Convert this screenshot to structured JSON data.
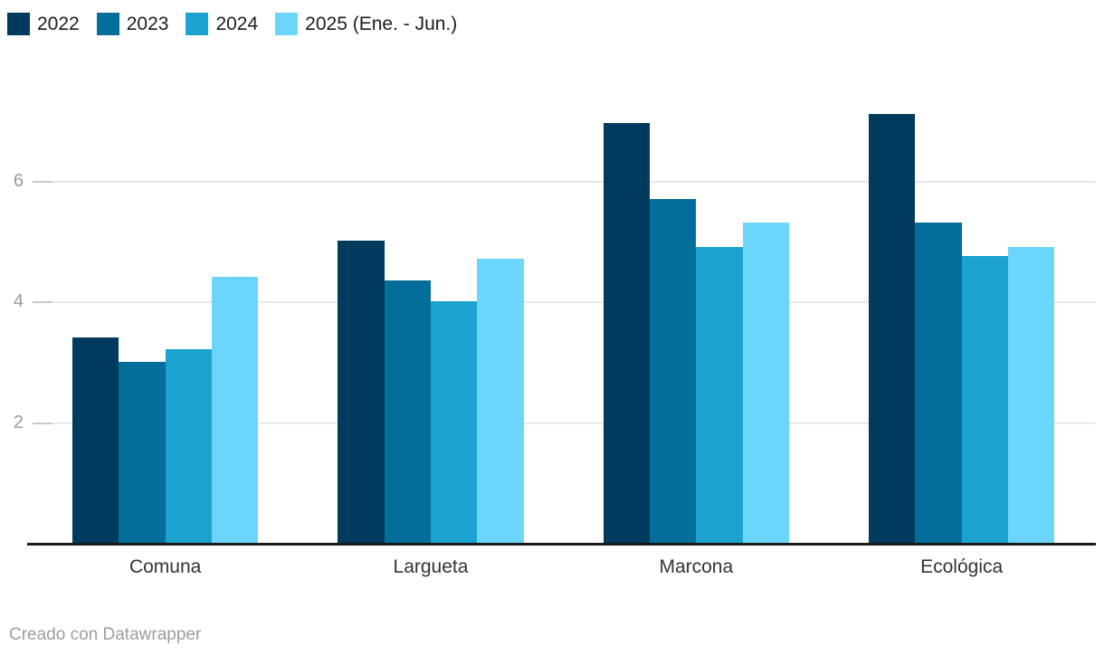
{
  "legend": {
    "items": [
      {
        "label": "2022",
        "color": "#003a5c"
      },
      {
        "label": "2023",
        "color": "#026e99"
      },
      {
        "label": "2024",
        "color": "#1ba2cf"
      },
      {
        "label": "2025 (Ene. - Jun.)",
        "color": "#6cd5fb"
      }
    ]
  },
  "chart_data": {
    "type": "bar",
    "title": "",
    "categories": [
      "Comuna",
      "Largueta",
      "Marcona",
      "Ecológica"
    ],
    "series": [
      {
        "name": "2022",
        "color": "#003a5c",
        "values": [
          3.4,
          5.0,
          6.95,
          7.1
        ]
      },
      {
        "name": "2023",
        "color": "#026e99",
        "values": [
          3.0,
          4.35,
          5.7,
          5.3
        ]
      },
      {
        "name": "2024",
        "color": "#1ba2cf",
        "values": [
          3.2,
          4.0,
          4.9,
          4.75
        ]
      },
      {
        "name": "2025 (Ene. - Jun.)",
        "color": "#6cd5fb",
        "values": [
          4.4,
          4.7,
          5.3,
          4.9
        ]
      }
    ],
    "yticks": [
      2,
      4,
      6
    ],
    "ylim": [
      0,
      7.5
    ],
    "grid": true,
    "legend_position": "top-left"
  },
  "footer": {
    "credit": "Creado con Datawrapper"
  },
  "colors": {
    "background": "#ffffff",
    "axis": "#1a1a1a",
    "gridline": "#e8e8e8",
    "tick": "#c9c9c9",
    "tick_label": "#9b9b9b",
    "category_label": "#333333",
    "legend_label": "#1d1d1d",
    "credit": "#9e9e9e"
  }
}
